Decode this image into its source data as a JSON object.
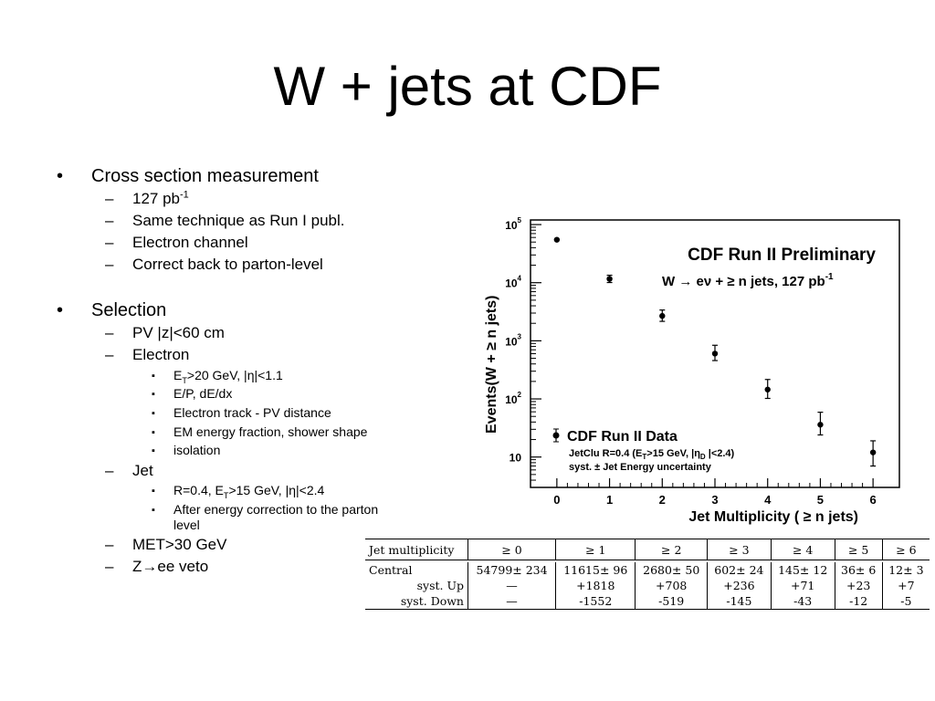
{
  "title": "W + jets at CDF",
  "bullets": {
    "b1": "Cross section measurement",
    "b1_lumi": "127 pb",
    "b1_lumi_exp": "-1",
    "b1_s2": "Same technique as Run I publ.",
    "b1_s3": "Electron channel",
    "b1_s4": "Correct back to parton-level",
    "b2": "Selection",
    "b2_pv": "PV |z|<60 cm",
    "b2_el": "Electron",
    "el1_e": "E",
    "el1_t": "T",
    "el1_rest": ">20 GeV, |η|<1.1",
    "el2": "E/P, dE/dx",
    "el3": "Electron track - PV distance",
    "el4": "EM energy fraction, shower shape",
    "el5": "isolation",
    "b2_jet": "Jet",
    "jet1_a": "R=0.4, E",
    "jet1_t": "T",
    "jet1_b": ">15 GeV, |η|<2.4",
    "jet2_l1": "After energy correction to the parton",
    "jet2_l2": "level",
    "b2_met": "MET>30 GeV",
    "b2_z": "Z→ee veto",
    "dash": "–",
    "dot": "•",
    "sq": "▪"
  },
  "chart_data": {
    "type": "scatter",
    "title": "CDF Run II Preliminary",
    "subtitle": "W → eν + ≥ n jets, 127 pb",
    "subtitle_exp": "-1",
    "xlabel": "Jet Multiplicity ( ≥ n jets)",
    "ylabel": "Events(W + ≥ n jets)",
    "log_y": true,
    "xlim": [
      -0.5,
      6.5
    ],
    "ylim": [
      3,
      120000
    ],
    "x_ticks": [
      "0",
      "1",
      "2",
      "3",
      "4",
      "5",
      "6"
    ],
    "y_ticks": [
      {
        "v": 10,
        "base": "10",
        "exp": ""
      },
      {
        "v": 100,
        "base": "10",
        "exp": "2"
      },
      {
        "v": 1000,
        "base": "10",
        "exp": "3"
      },
      {
        "v": 10000,
        "base": "10",
        "exp": "4"
      },
      {
        "v": 100000,
        "base": "10",
        "exp": "5"
      }
    ],
    "legend": {
      "title": "CDF Run II Data",
      "line1_a": "JetClu R=0.4 (E",
      "line1_t": "T",
      "line1_b": ">15 GeV, |η",
      "line1_d": "D",
      "line1_c": " |<2.4)",
      "line2": "syst. ± Jet Energy uncertainty"
    },
    "series": [
      {
        "x": [
          0,
          1,
          2,
          3,
          4,
          5,
          6
        ],
        "y": [
          54799,
          11615,
          2680,
          602,
          145,
          36,
          12
        ],
        "err_hi": [
          0,
          1818,
          708,
          236,
          71,
          23,
          7
        ],
        "err_lo": [
          0,
          1552,
          519,
          145,
          43,
          12,
          5
        ]
      }
    ]
  },
  "table": {
    "header": [
      "Jet multiplicity",
      "≥ 0",
      "≥ 1",
      "≥ 2",
      "≥ 3",
      "≥ 4",
      "≥ 5",
      "≥ 6"
    ],
    "rows": [
      [
        "Central",
        "54799± 234",
        "11615± 96",
        "2680± 50",
        "602± 24",
        "145± 12",
        "36± 6",
        "12± 3"
      ],
      [
        "syst. Up",
        "—",
        "+1818",
        "+708",
        "+236",
        "+71",
        "+23",
        "+7"
      ],
      [
        "syst. Down",
        "—",
        "-1552",
        "-519",
        "-145",
        "-43",
        "-12",
        "-5"
      ]
    ]
  }
}
